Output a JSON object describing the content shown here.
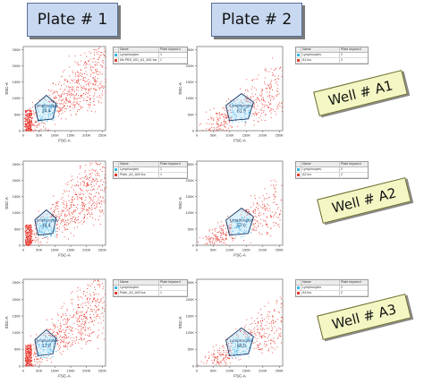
{
  "plate_titles": [
    "Plate # 1",
    "Plate # 2"
  ],
  "well_labels": [
    "Well # A1",
    "Well # A2",
    "Well # A3"
  ],
  "plot_common": {
    "x_label": "FSC-A",
    "y_label": "SSC-A",
    "x_ticks": [
      "0",
      "50K",
      "100K",
      "150K",
      "200K",
      "250K"
    ],
    "y_ticks": [
      "0",
      "50K",
      "100K",
      "150K",
      "200K",
      "250K"
    ],
    "gate_name": "Lymphocytes",
    "dot_color": "#e8332a",
    "gate_dot_color": "#3ab4e8"
  },
  "legend_headers": {
    "name": "Name",
    "keyword": "Plate keyword"
  },
  "legend_colors": {
    "gate": "#35b6e6",
    "file": "#e23a2c"
  },
  "plots": [
    {
      "gate_pct": "24.4",
      "legend": [
        {
          "name": "Lymphocytes",
          "keyword": "1"
        },
        {
          "name": "Ms PBS_001_A1_A01.fcs",
          "keyword": "1"
        }
      ]
    },
    {
      "gate_pct": "61.9",
      "legend": [
        {
          "name": "Lymphocytes",
          "keyword": "2"
        },
        {
          "name": "A1.fcs",
          "keyword": "2"
        }
      ]
    },
    {
      "gate_pct": "14.4",
      "legend": [
        {
          "name": "Lymphocytes",
          "keyword": "1"
        },
        {
          "name": "Plate_A2_A02.fcs",
          "keyword": "1"
        }
      ]
    },
    {
      "gate_pct": "57.6",
      "legend": [
        {
          "name": "Lymphocytes",
          "keyword": "2"
        },
        {
          "name": "A2.fcs",
          "keyword": "2"
        }
      ]
    },
    {
      "gate_pct": "17.0",
      "legend": [
        {
          "name": "Lymphocytes",
          "keyword": "1"
        },
        {
          "name": "Plate_A3_A03.fcs",
          "keyword": "1"
        }
      ]
    },
    {
      "gate_pct": "66.0",
      "legend": [
        {
          "name": "Lymphocytes",
          "keyword": "2"
        },
        {
          "name": "A3.fcs",
          "keyword": "2"
        }
      ]
    }
  ]
}
